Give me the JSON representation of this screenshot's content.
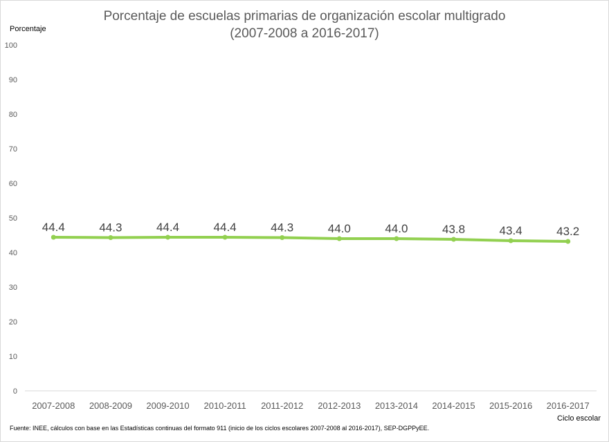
{
  "chart_data": {
    "type": "line",
    "title": "Porcentaje de escuelas primarias de organización escolar multigrado",
    "subtitle": "(2007-2008 a 2016-2017)",
    "ylabel": "Porcentaje",
    "xlabel": "Ciclo escolar",
    "ylim": [
      0,
      100
    ],
    "yticks": [
      0,
      10,
      20,
      30,
      40,
      50,
      60,
      70,
      80,
      90,
      100
    ],
    "ytick_labels": [
      "0",
      "10",
      "20",
      "30",
      "40",
      "50",
      "60",
      "70",
      "80",
      "90",
      "100"
    ],
    "grid": false,
    "categories": [
      "2007-2008",
      "2008-2009",
      "2009-2010",
      "2010-2011",
      "2011-2012",
      "2012-2013",
      "2013-2014",
      "2014-2015",
      "2015-2016",
      "2016-2017"
    ],
    "series": [
      {
        "values": [
          44.4,
          44.3,
          44.4,
          44.4,
          44.3,
          44.0,
          44.0,
          43.8,
          43.4,
          43.2
        ],
        "labels": [
          "44.4",
          "44.3",
          "44.4",
          "44.4",
          "44.3",
          "44.0",
          "44.0",
          "43.8",
          "43.4",
          "43.2"
        ],
        "color": "#92d050"
      }
    ],
    "source": "Fuente: INEE, cálculos con base en las Estadísticas continuas del formato 911 (inicio de los ciclos escolares 2007-2008 al 2016-2017), SEP-DGPPyEE."
  }
}
